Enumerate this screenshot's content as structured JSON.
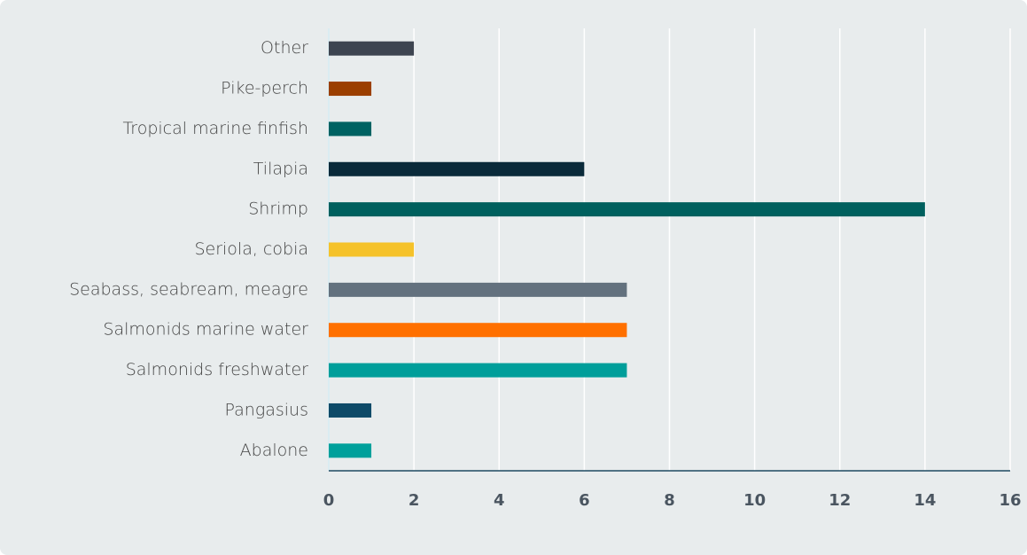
{
  "chart_data": {
    "type": "barh",
    "categories": [
      "Other",
      "Pike-perch",
      "Tropical marine finfish",
      "Tilapia",
      "Shrimp",
      "Seriola, cobia",
      "Seabass, seabream, meagre",
      "Salmonids marine water",
      "Salmonids freshwater",
      "Pangasius",
      "Abalone"
    ],
    "values": [
      2,
      1,
      1,
      6,
      14,
      2,
      7,
      7,
      7,
      1,
      1
    ],
    "colors": [
      "#3d4450",
      "#9b3f00",
      "#006262",
      "#0a2a3a",
      "#00605e",
      "#f5c22a",
      "#63717e",
      "#ff7000",
      "#009e9a",
      "#0e4a68",
      "#00a09b"
    ],
    "xlim": [
      0,
      16
    ],
    "xticks": [
      0,
      2,
      4,
      6,
      8,
      10,
      12,
      14,
      16
    ],
    "grid": true
  }
}
